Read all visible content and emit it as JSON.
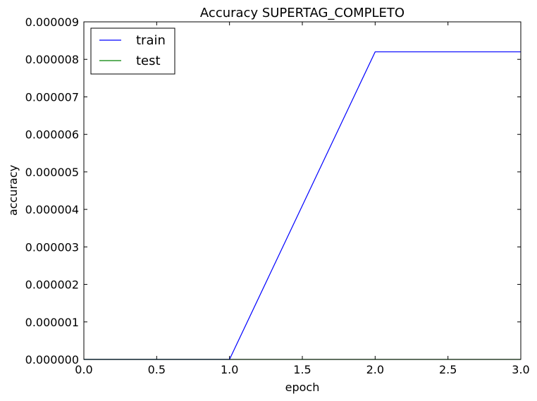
{
  "chart_data": {
    "type": "line",
    "title": "Accuracy SUPERTAG_COMPLETO",
    "xlabel": "epoch",
    "ylabel": "accuracy",
    "xlim": [
      0.0,
      3.0
    ],
    "ylim": [
      0.0,
      9e-06
    ],
    "xticks": [
      0.0,
      0.5,
      1.0,
      1.5,
      2.0,
      2.5,
      3.0
    ],
    "xtick_labels": [
      "0.0",
      "0.5",
      "1.0",
      "1.5",
      "2.0",
      "2.5",
      "3.0"
    ],
    "yticks": [
      0,
      1e-06,
      2e-06,
      3e-06,
      4e-06,
      5e-06,
      6e-06,
      7e-06,
      8e-06,
      9e-06
    ],
    "ytick_labels": [
      "0.000000",
      "0.000001",
      "0.000002",
      "0.000003",
      "0.000004",
      "0.000005",
      "0.000006",
      "0.000007",
      "0.000008",
      "0.000009"
    ],
    "grid": false,
    "legend_position": "top-left",
    "series": [
      {
        "name": "train",
        "color": "#0000ff",
        "x": [
          0,
          1,
          2,
          3
        ],
        "y": [
          0,
          0,
          8.2e-06,
          8.2e-06
        ]
      },
      {
        "name": "test",
        "color": "#008000",
        "x": [
          0,
          1,
          2,
          3
        ],
        "y": [
          0,
          0,
          0,
          0
        ]
      }
    ]
  }
}
